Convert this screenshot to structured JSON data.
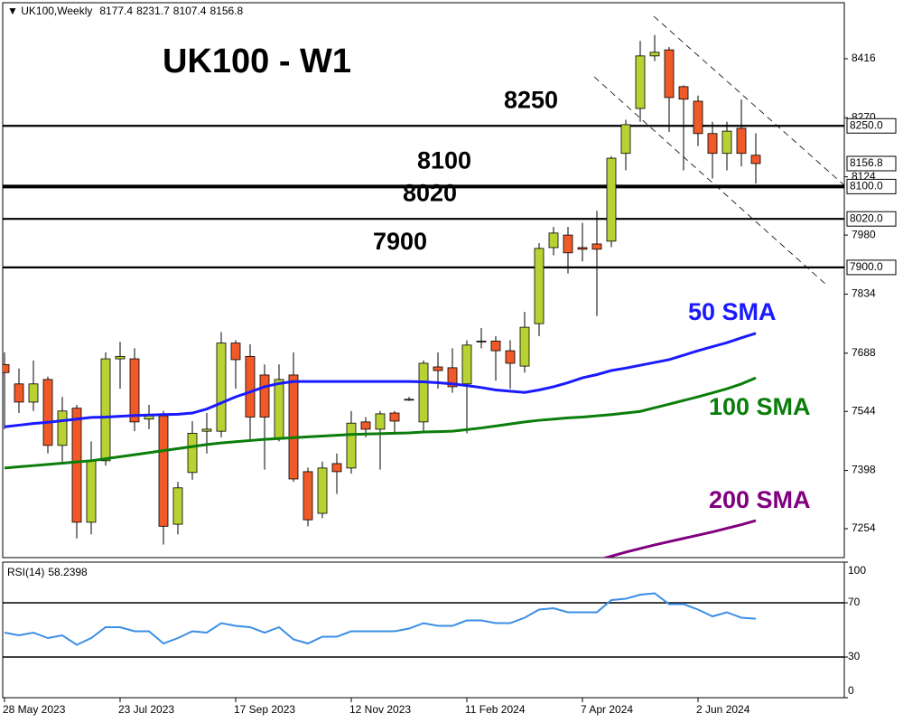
{
  "chart_data": {
    "type": "candlestick",
    "symbol": "UK100,Weekly",
    "title": "UK100 - W1",
    "categories": [
      "28 May 2023",
      null,
      null,
      null,
      null,
      null,
      null,
      null,
      "23 Jul 2023",
      null,
      null,
      null,
      null,
      null,
      null,
      null,
      "17 Sep 2023",
      null,
      null,
      null,
      null,
      null,
      null,
      null,
      "12 Nov 2023",
      null,
      null,
      null,
      null,
      null,
      null,
      null,
      "11 Feb 2024",
      null,
      null,
      null,
      null,
      null,
      null,
      null,
      "7 Apr 2024",
      null,
      null,
      null,
      null,
      null,
      null,
      null,
      "2 Jun 2024",
      null,
      null,
      null,
      null
    ],
    "open": [
      7660,
      7612,
      7567,
      7623,
      7460,
      7552,
      7270,
      7422,
      7674,
      7674,
      7525,
      7533,
      7265,
      7393,
      7495,
      7495,
      7713,
      7680,
      7634,
      7478,
      7634,
      7395,
      7292,
      7415,
      7404,
      7518,
      7500,
      7540,
      7574,
      7518,
      7654,
      7652,
      7612,
      7716,
      7718,
      7694,
      7656,
      7761,
      7949,
      7980,
      7949,
      7958,
      7965,
      8182,
      8293,
      8423,
      8438,
      8347,
      8311,
      8231,
      8182,
      8244,
      8177.4
    ],
    "high": [
      7690,
      7650,
      7670,
      7630,
      7580,
      7560,
      7470,
      7690,
      7716,
      7700,
      7560,
      7545,
      7370,
      7520,
      7540,
      7740,
      7720,
      7710,
      7660,
      7660,
      7690,
      7405,
      7420,
      7440,
      7545,
      7530,
      7545,
      7545,
      7580,
      7670,
      7690,
      7700,
      7720,
      7750,
      7730,
      7720,
      7790,
      7960,
      8000,
      8000,
      8010,
      8040,
      8175,
      8265,
      8460,
      8475,
      8445,
      8350,
      8325,
      8260,
      8260,
      8315,
      8231.7
    ],
    "low": [
      7500,
      7540,
      7545,
      7440,
      7420,
      7230,
      7240,
      7410,
      7600,
      7495,
      7500,
      7215,
      7240,
      7375,
      7440,
      7480,
      7600,
      7470,
      7400,
      7470,
      7370,
      7260,
      7280,
      7340,
      7390,
      7480,
      7400,
      7490,
      7570,
      7490,
      7600,
      7590,
      7490,
      7700,
      7620,
      7600,
      7640,
      7730,
      7930,
      7885,
      7915,
      7780,
      7950,
      8140,
      8260,
      8410,
      8235,
      8140,
      8200,
      8120,
      8140,
      8150,
      8107.4
    ],
    "close": [
      7640,
      7567,
      7612,
      7460,
      7545,
      7270,
      7422,
      7674,
      7680,
      7518,
      7535,
      7260,
      7355,
      7490,
      7500,
      7713,
      7672,
      7530,
      7530,
      7623,
      7377,
      7276,
      7404,
      7395,
      7515,
      7500,
      7538,
      7520,
      7574,
      7663,
      7645,
      7605,
      7708,
      7718,
      7694,
      7663,
      7752,
      7947,
      7985,
      7936,
      7945,
      7945,
      8170,
      8253,
      8423,
      8432,
      8320,
      8316,
      8231,
      8182,
      8237,
      8182,
      8156.8
    ],
    "bull_color": "#b8d233",
    "bear_color": "#f05a28",
    "series": [
      {
        "name": "50 SMA",
        "color": "#1a1aff",
        "values": [
          7506,
          7510,
          7514,
          7517,
          7521,
          7525,
          7529,
          7530,
          7532,
          7534,
          7535,
          7536,
          7537,
          7540,
          7550,
          7565,
          7580,
          7592,
          7605,
          7613,
          7618,
          7618,
          7618,
          7618,
          7618,
          7618,
          7618,
          7618,
          7618,
          7617,
          7615,
          7612,
          7608,
          7603,
          7597,
          7594,
          7591,
          7597,
          7605,
          7615,
          7627,
          7635,
          7645,
          7651,
          7658,
          7665,
          7672,
          7683,
          7694,
          7704,
          7714,
          7726,
          7737
        ]
      },
      {
        "name": "100 SMA",
        "color": "#0a7d0a",
        "values": [
          7404,
          7407,
          7410,
          7413,
          7416,
          7419,
          7422,
          7427,
          7432,
          7437,
          7442,
          7447,
          7452,
          7457,
          7462,
          7466,
          7469,
          7472,
          7475,
          7477,
          7479,
          7481,
          7483,
          7485,
          7487,
          7488,
          7489,
          7490,
          7491,
          7493,
          7494,
          7495,
          7499,
          7503,
          7508,
          7513,
          7518,
          7522,
          7525,
          7528,
          7530,
          7533,
          7536,
          7540,
          7544,
          7553,
          7562,
          7571,
          7580,
          7590,
          7600,
          7612,
          7627
        ]
      },
      {
        "name": "200 SMA",
        "color": "#800080",
        "values": [
          null,
          null,
          null,
          null,
          null,
          null,
          null,
          null,
          null,
          null,
          null,
          null,
          null,
          null,
          null,
          null,
          null,
          null,
          null,
          null,
          null,
          null,
          null,
          null,
          null,
          null,
          null,
          null,
          null,
          null,
          null,
          null,
          null,
          null,
          null,
          null,
          null,
          null,
          null,
          null,
          null,
          7176,
          7186,
          7196,
          7205,
          7214,
          7222,
          7230,
          7238,
          7246,
          7255,
          7264,
          7274
        ]
      }
    ],
    "ylim": [
      7182.5,
      8554.5
    ],
    "yticks": [
      8416,
      8270,
      8124,
      7980,
      7834,
      7688,
      7544,
      7398,
      7254
    ],
    "levels": [
      {
        "value": 8250,
        "label": "8250.0"
      },
      {
        "value": 8100,
        "label": "8100.0"
      },
      {
        "value": 8020,
        "label": "8020.0"
      },
      {
        "value": 7900,
        "label": "7900.0"
      }
    ],
    "rsi": {
      "title": "RSI(14)",
      "color": "#3a8ee6",
      "values": [
        48,
        46,
        48,
        44,
        46,
        39,
        44,
        52,
        52,
        49,
        49,
        40,
        44,
        49,
        48,
        55,
        53,
        52,
        48,
        52,
        43,
        40,
        45,
        45,
        49,
        49,
        49,
        49,
        51,
        55,
        53,
        53,
        57,
        57,
        55,
        55,
        59,
        65,
        66,
        63,
        63,
        63,
        72,
        73,
        76,
        77,
        69,
        69,
        65,
        60,
        63,
        59,
        58.2398
      ],
      "ylim": [
        0,
        100
      ],
      "yticks": [
        100,
        70,
        30,
        0
      ],
      "levels": [
        70,
        30
      ]
    }
  }
}
